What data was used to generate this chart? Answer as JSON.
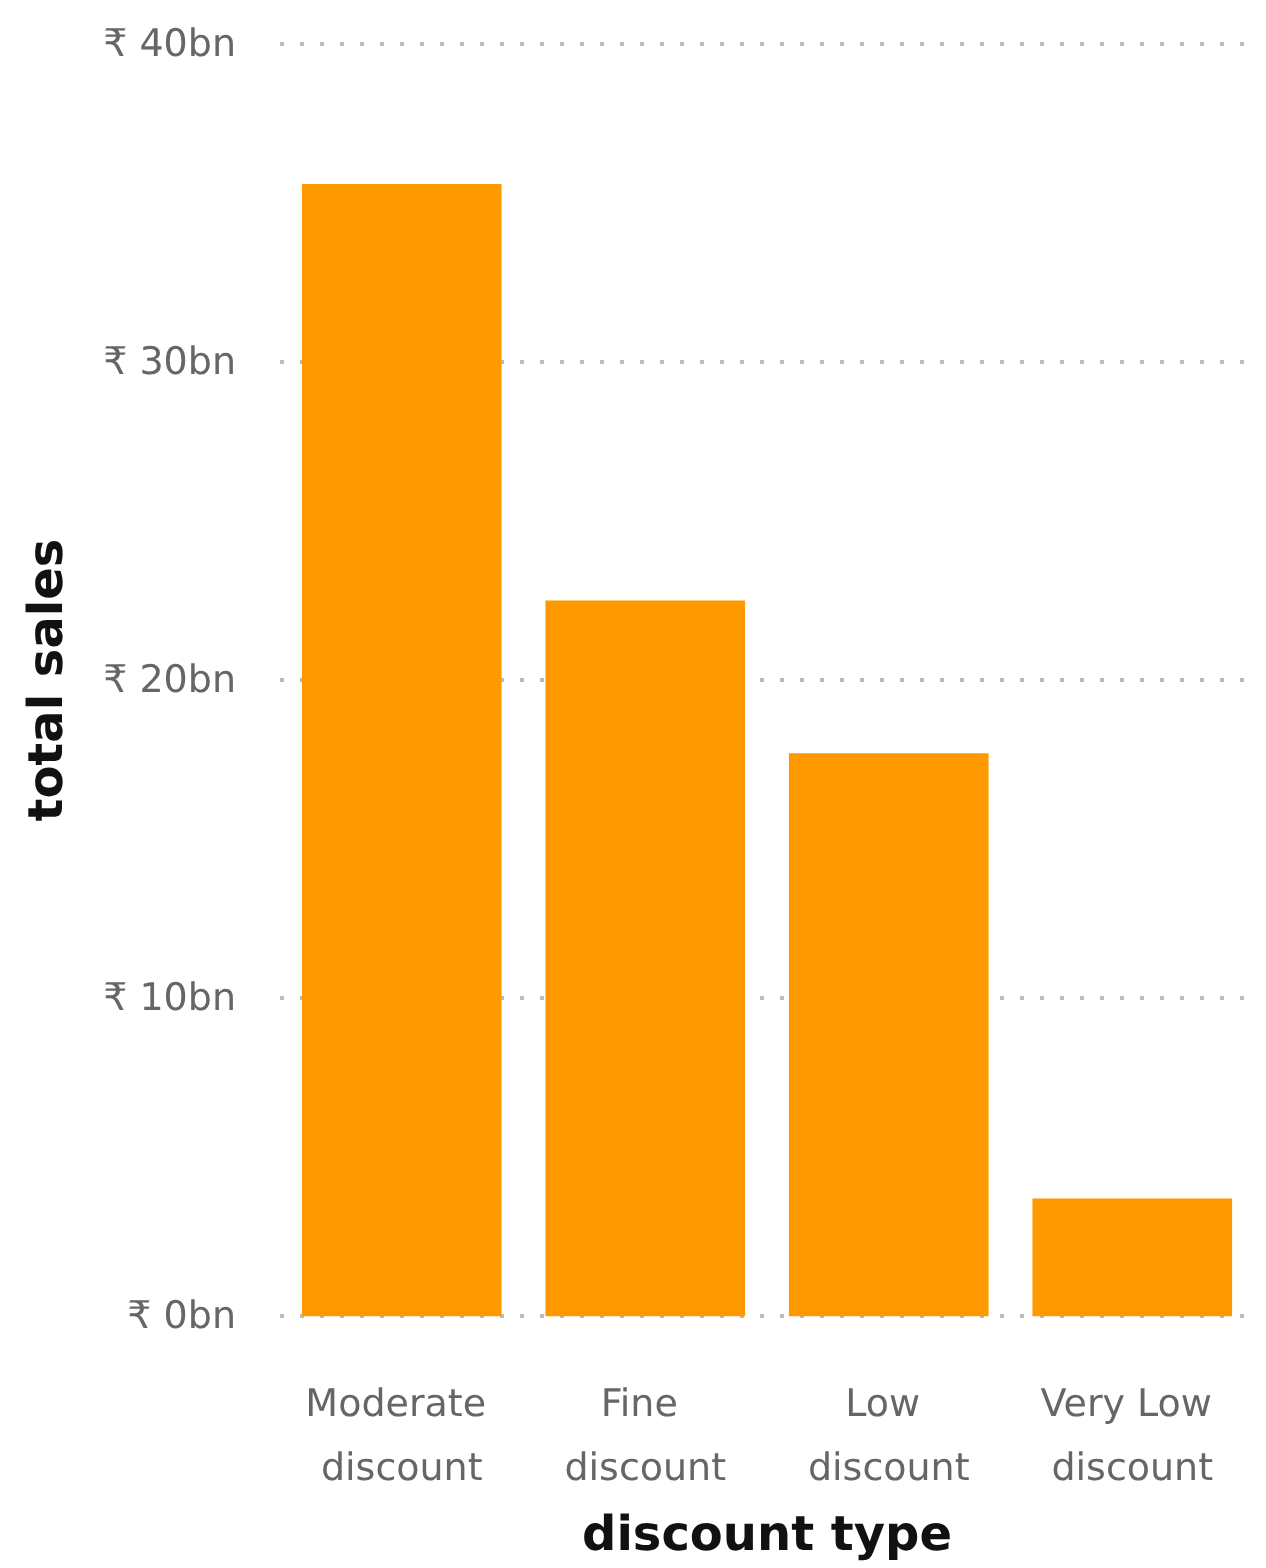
{
  "chart_data": {
    "type": "bar",
    "xlabel": "discount type",
    "ylabel": "total sales",
    "categories": [
      "Moderate discount",
      "Fine discount",
      "Low discount",
      "Very Low discount"
    ],
    "values": [
      35.6,
      22.5,
      17.7,
      3.7
    ],
    "color": "#ff9900",
    "ylim": [
      0,
      40
    ],
    "yticks": [
      {
        "value": 0,
        "label": "₹ 0bn"
      },
      {
        "value": 10,
        "label": "₹ 10bn"
      },
      {
        "value": 20,
        "label": "₹ 20bn"
      },
      {
        "value": 30,
        "label": "₹ 30bn"
      },
      {
        "value": 40,
        "label": "₹ 40bn"
      }
    ],
    "grid": "y"
  }
}
